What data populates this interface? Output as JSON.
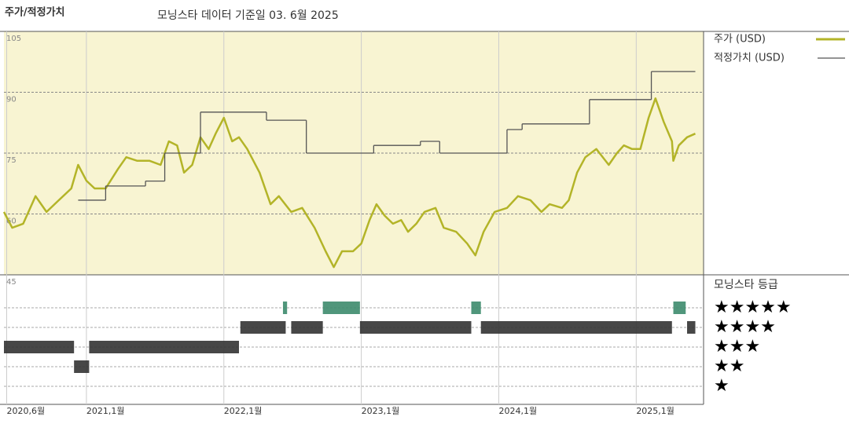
{
  "chart_data": {
    "type": "line",
    "title": "주가/적정가치",
    "subtitle": "모닝스타 데이터 기준일 03. 6월 2025",
    "xlim": [
      2020.4,
      2025.49
    ],
    "xticks": [
      {
        "value": 2020.42,
        "label": "2020,6월"
      },
      {
        "value": 2021.0,
        "label": "2021,1월"
      },
      {
        "value": 2022.0,
        "label": "2022,1월"
      },
      {
        "value": 2023.0,
        "label": "2023,1월"
      },
      {
        "value": 2024.0,
        "label": "2024,1월"
      },
      {
        "value": 2025.0,
        "label": "2025,1월"
      }
    ],
    "ylim": [
      45,
      105
    ],
    "yticks": [
      105,
      90,
      75,
      60,
      45
    ],
    "grid": true,
    "background": "#f8f4d2",
    "series": [
      {
        "name": "주가 (USD)",
        "color": "#b3b428",
        "x": [
          2020.4,
          2020.46,
          2020.54,
          2020.63,
          2020.71,
          2020.8,
          2020.89,
          2020.94,
          2021.0,
          2021.06,
          2021.14,
          2021.23,
          2021.29,
          2021.37,
          2021.46,
          2021.54,
          2021.6,
          2021.66,
          2021.71,
          2021.77,
          2021.83,
          2021.89,
          2021.94,
          2022.0,
          2022.06,
          2022.11,
          2022.17,
          2022.26,
          2022.34,
          2022.4,
          2022.49,
          2022.57,
          2022.66,
          2022.74,
          2022.8,
          2022.86,
          2022.94,
          2023.0,
          2023.06,
          2023.11,
          2023.17,
          2023.23,
          2023.29,
          2023.34,
          2023.4,
          2023.46,
          2023.54,
          2023.6,
          2023.69,
          2023.77,
          2023.83,
          2023.89,
          2023.97,
          2024.06,
          2024.14,
          2024.23,
          2024.31,
          2024.37,
          2024.46,
          2024.51,
          2024.57,
          2024.63,
          2024.71,
          2024.8,
          2024.86,
          2024.91,
          2024.97,
          2025.03,
          2025.09,
          2025.14,
          2025.2,
          2025.26,
          2025.27,
          2025.31,
          2025.37,
          2025.43
        ],
        "values": [
          60.5,
          56.6,
          57.6,
          64.4,
          60.5,
          63.4,
          66.3,
          72.1,
          68.2,
          66.3,
          66.3,
          71.1,
          74,
          73.1,
          73.1,
          72.1,
          77.9,
          76.9,
          70.2,
          72.1,
          78.9,
          76,
          79.8,
          83.7,
          77.9,
          78.9,
          76,
          70.2,
          62.4,
          64.4,
          60.5,
          61.5,
          56.6,
          50.8,
          46.9,
          50.8,
          50.8,
          52.7,
          58.5,
          62.4,
          59.6,
          57.6,
          58.5,
          55.6,
          57.6,
          60.5,
          61.5,
          56.6,
          55.6,
          52.7,
          49.8,
          55.6,
          60.5,
          61.5,
          64.4,
          63.4,
          60.5,
          62.4,
          61.5,
          63.4,
          70.2,
          74,
          76,
          72.1,
          75,
          76.9,
          76,
          76,
          83.7,
          88.5,
          82.7,
          77.9,
          73.1,
          76.9,
          78.9,
          79.8
        ]
      },
      {
        "name": "적정가치 (USD)",
        "color": "#555555",
        "step": true,
        "x": [
          2020.94,
          2021.14,
          2021.43,
          2021.57,
          2021.83,
          2022.31,
          2022.6,
          2023.09,
          2023.43,
          2023.57,
          2024.06,
          2024.17,
          2024.66,
          2025.11,
          2025.43
        ],
        "values": [
          63.4,
          66.9,
          68.1,
          75,
          85.1,
          83.1,
          75,
          76.9,
          77.9,
          75,
          80.8,
          82.2,
          88.2,
          95.1,
          95.1
        ]
      }
    ],
    "rating": {
      "title": "모닝스타 등급",
      "levels": [
        5,
        4,
        3,
        2,
        1
      ],
      "labels": [
        "★★★★★",
        "★★★★",
        "★★★",
        "★★",
        "★"
      ],
      "colors": [
        "#3d8b6d",
        "#333333",
        "#333333",
        "#333333",
        "#333333"
      ],
      "segments": [
        {
          "start": 2020.4,
          "end": 2020.91,
          "stars": 3
        },
        {
          "start": 2020.91,
          "end": 2021.02,
          "stars": 2
        },
        {
          "start": 2021.02,
          "end": 2022.11,
          "stars": 3
        },
        {
          "start": 2022.12,
          "end": 2022.45,
          "stars": 4
        },
        {
          "start": 2022.43,
          "end": 2022.46,
          "stars": 5
        },
        {
          "start": 2022.49,
          "end": 2022.72,
          "stars": 4
        },
        {
          "start": 2022.72,
          "end": 2022.99,
          "stars": 5
        },
        {
          "start": 2022.99,
          "end": 2023.8,
          "stars": 4
        },
        {
          "start": 2023.8,
          "end": 2023.87,
          "stars": 5
        },
        {
          "start": 2023.87,
          "end": 2025.26,
          "stars": 4
        },
        {
          "start": 2025.27,
          "end": 2025.36,
          "stars": 5
        },
        {
          "start": 2025.37,
          "end": 2025.43,
          "stars": 4
        }
      ]
    }
  }
}
